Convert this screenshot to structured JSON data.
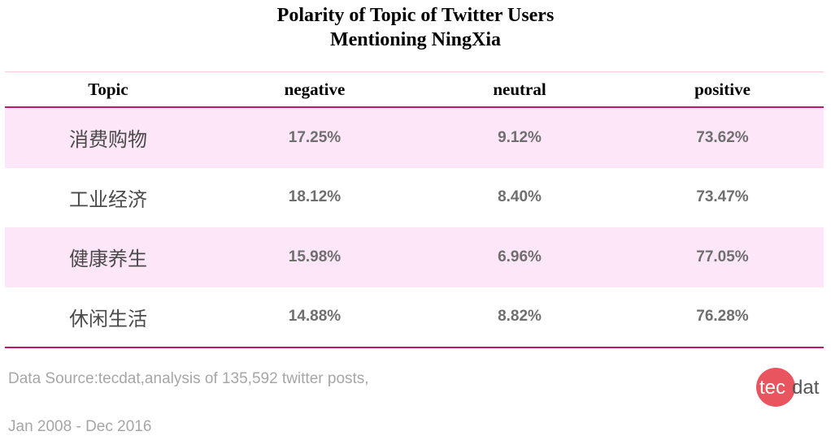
{
  "chart_data": {
    "type": "table",
    "title_lines": [
      "Polarity of Topic of Twitter Users",
      "Mentioning NingXia"
    ],
    "columns": [
      "Topic",
      "negative",
      "neutral",
      "positive"
    ],
    "rows": [
      {
        "topic": "消费购物",
        "negative": "17.25%",
        "neutral": "9.12%",
        "positive": "73.62%"
      },
      {
        "topic": "工业经济",
        "negative": "18.12%",
        "neutral": "8.40%",
        "positive": "73.47%"
      },
      {
        "topic": "健康养生",
        "negative": "15.98%",
        "neutral": "6.96%",
        "positive": "77.05%"
      },
      {
        "topic": "休闲生活",
        "negative": "14.88%",
        "neutral": "8.82%",
        "positive": "76.28%"
      }
    ],
    "source_lines": [
      "Data Source:tecdat,analysis of 135,592 twitter posts,",
      "Jan 2008 - Dec 2016"
    ]
  },
  "logo": {
    "part1": "tec",
    "part2": "dat",
    "circle_color": "#e8555f"
  },
  "colors": {
    "accent": "#c2186b",
    "row_shade": "#fde6f8"
  }
}
